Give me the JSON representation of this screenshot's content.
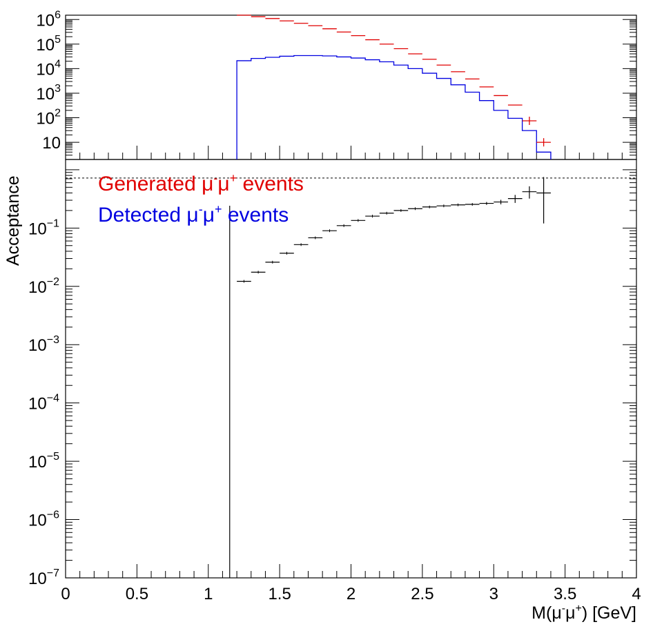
{
  "chart_data": [
    {
      "type": "line",
      "panel": "top",
      "scale": "log",
      "ylim": [
        2,
        1500000
      ],
      "xlim": [
        0,
        4
      ],
      "ytick_labels": [
        {
          "base": "10",
          "exp": "6",
          "value": 1000000
        },
        {
          "base": "10",
          "exp": "5",
          "value": 100000
        },
        {
          "base": "10",
          "exp": "4",
          "value": 10000
        },
        {
          "base": "10",
          "exp": "3",
          "value": 1000
        },
        {
          "base": "10",
          "exp": "2",
          "value": 100
        },
        {
          "base": "10",
          "exp": "",
          "value": 10
        }
      ],
      "series": [
        {
          "name": "Generated μ⁻μ⁺ events",
          "color": "#e00000",
          "style": "points-with-xerr",
          "x": [
            1.25,
            1.35,
            1.45,
            1.55,
            1.65,
            1.75,
            1.85,
            1.95,
            2.05,
            2.15,
            2.25,
            2.35,
            2.45,
            2.55,
            2.65,
            2.75,
            2.85,
            2.95,
            3.05,
            3.15,
            3.25,
            3.35
          ],
          "values": [
            1500000,
            1300000,
            1100000,
            880000,
            700000,
            560000,
            420000,
            310000,
            220000,
            150000,
            100000,
            65000,
            40000,
            24000,
            14000,
            7500,
            3800,
            1800,
            800,
            330,
            75,
            10
          ]
        },
        {
          "name": "Detected μ⁻μ⁺ events",
          "color": "#0000e0",
          "style": "step",
          "edges": [
            1.2,
            1.3,
            1.4,
            1.5,
            1.6,
            1.7,
            1.8,
            1.9,
            2.0,
            2.1,
            2.2,
            2.3,
            2.4,
            2.5,
            2.6,
            2.7,
            2.8,
            2.9,
            3.0,
            3.1,
            3.2,
            3.3,
            3.4
          ],
          "values": [
            21000,
            26000,
            29000,
            32000,
            34000,
            34000,
            33000,
            30000,
            27000,
            23000,
            19000,
            14000,
            10000,
            6500,
            4000,
            2200,
            1100,
            500,
            200,
            95,
            30,
            4
          ]
        }
      ]
    },
    {
      "type": "scatter",
      "panel": "bottom",
      "scale": "log",
      "ylabel": "Acceptance",
      "xlabel": "M(μ⁻μ⁺) [GeV]",
      "xlim": [
        0,
        4
      ],
      "ylim": [
        1e-07,
        1.5
      ],
      "xtick_labels": [
        "0",
        "0.5",
        "1",
        "1.5",
        "2",
        "2.5",
        "3",
        "3.5",
        "4"
      ],
      "ytick_labels": [
        {
          "base": "10",
          "exp": "−1",
          "value": 0.1
        },
        {
          "base": "10",
          "exp": "−2",
          "value": 0.01
        },
        {
          "base": "10",
          "exp": "−3",
          "value": 0.001
        },
        {
          "base": "10",
          "exp": "−4",
          "value": 0.0001
        },
        {
          "base": "10",
          "exp": "−5",
          "value": 1e-05
        },
        {
          "base": "10",
          "exp": "−6",
          "value": 1e-06
        },
        {
          "base": "10",
          "exp": "−7",
          "value": 1e-07
        }
      ],
      "x": [
        1.25,
        1.35,
        1.45,
        1.55,
        1.65,
        1.75,
        1.85,
        1.95,
        2.05,
        2.15,
        2.25,
        2.35,
        2.45,
        2.55,
        2.65,
        2.75,
        2.85,
        2.95,
        3.05,
        3.15,
        3.25,
        3.35
      ],
      "values": [
        0.0122,
        0.0175,
        0.026,
        0.037,
        0.052,
        0.068,
        0.09,
        0.11,
        0.135,
        0.16,
        0.18,
        0.2,
        0.215,
        0.23,
        0.24,
        0.25,
        0.255,
        0.265,
        0.28,
        0.32,
        0.42,
        0.4
      ],
      "yerr": [
        0,
        0,
        0,
        0,
        0,
        0,
        0,
        0,
        0,
        0,
        0,
        0,
        0,
        0,
        0,
        0,
        0,
        0.015,
        0.025,
        0.05,
        0.1,
        0.35
      ],
      "threshold_x": 1.15,
      "reference_y": 0.72
    }
  ],
  "legend": {
    "generated": {
      "prefix": "Generated μ",
      "sup1": "-",
      "mid": "μ",
      "sup2": "+",
      "suffix": " events",
      "color": "#e00000"
    },
    "detected": {
      "prefix": "Detected μ",
      "sup1": "-",
      "mid": "μ",
      "sup2": "+",
      "suffix": " events",
      "color": "#0000e0"
    }
  },
  "axis_titles": {
    "y": "Acceptance",
    "x_prefix": "M(μ",
    "x_sup1": "-",
    "x_mid": "μ",
    "x_sup2": "+",
    "x_suffix": ") [GeV]"
  }
}
